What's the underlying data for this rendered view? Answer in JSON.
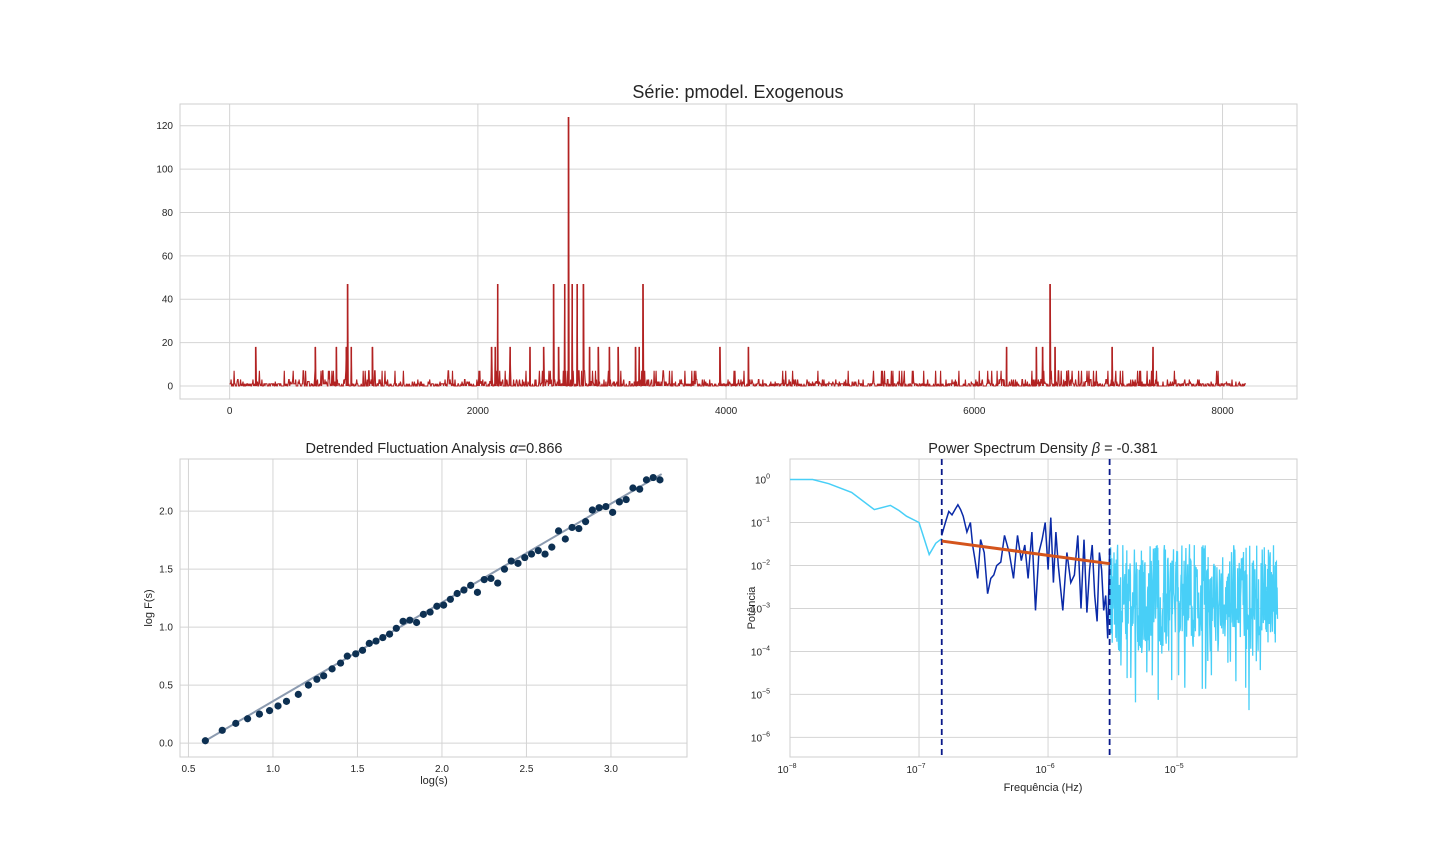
{
  "chart_data": [
    {
      "type": "line",
      "title": "Série: pmodel. Exogenous",
      "xlabel": "",
      "ylabel": "",
      "xlim": [
        -400,
        8600
      ],
      "ylim": [
        -6,
        130
      ],
      "xticks": [
        0,
        2000,
        4000,
        6000,
        8000
      ],
      "yticks": [
        0,
        20,
        40,
        60,
        80,
        100,
        120
      ],
      "grid": true,
      "series": [
        {
          "color": "#b22222",
          "n_points": 8192,
          "spikes": [
            {
              "x": 2730,
              "y": 124
            },
            {
              "x": 950,
              "y": 47
            },
            {
              "x": 2160,
              "y": 47
            },
            {
              "x": 2610,
              "y": 47
            },
            {
              "x": 2700,
              "y": 47
            },
            {
              "x": 2760,
              "y": 47
            },
            {
              "x": 2800,
              "y": 47
            },
            {
              "x": 2850,
              "y": 47
            },
            {
              "x": 3330,
              "y": 47
            },
            {
              "x": 6610,
              "y": 47
            },
            {
              "x": 210,
              "y": 18
            },
            {
              "x": 690,
              "y": 18
            },
            {
              "x": 860,
              "y": 18
            },
            {
              "x": 940,
              "y": 18
            },
            {
              "x": 980,
              "y": 18
            },
            {
              "x": 1150,
              "y": 18
            },
            {
              "x": 2110,
              "y": 18
            },
            {
              "x": 2140,
              "y": 18
            },
            {
              "x": 2260,
              "y": 18
            },
            {
              "x": 2420,
              "y": 18
            },
            {
              "x": 2530,
              "y": 18
            },
            {
              "x": 2650,
              "y": 18
            },
            {
              "x": 2900,
              "y": 18
            },
            {
              "x": 2970,
              "y": 18
            },
            {
              "x": 3060,
              "y": 18
            },
            {
              "x": 3130,
              "y": 18
            },
            {
              "x": 3270,
              "y": 18
            },
            {
              "x": 3300,
              "y": 18
            },
            {
              "x": 3950,
              "y": 18
            },
            {
              "x": 4180,
              "y": 18
            },
            {
              "x": 6260,
              "y": 18
            },
            {
              "x": 6500,
              "y": 18
            },
            {
              "x": 6550,
              "y": 18
            },
            {
              "x": 6650,
              "y": 18
            },
            {
              "x": 7110,
              "y": 18
            },
            {
              "x": 7440,
              "y": 18
            }
          ]
        }
      ]
    },
    {
      "type": "scatter",
      "title": "Detrended Fluctuation Analysis α=0.866",
      "title_prefix": "Detrended Fluctuation Analysis ",
      "title_symbol": "α",
      "title_suffix": "=0.866",
      "xlabel": "log(s)",
      "ylabel": "log F(s)",
      "xlim": [
        0.45,
        3.45
      ],
      "ylim": [
        -0.12,
        2.45
      ],
      "xticks": [
        "0.5",
        "1.0",
        "1.5",
        "2.0",
        "2.5",
        "3.0"
      ],
      "yticks": [
        "0.0",
        "0.5",
        "1.0",
        "1.5",
        "2.0"
      ],
      "grid": true,
      "fit": {
        "x": [
          0.6,
          3.3
        ],
        "y": [
          0.02,
          2.32
        ],
        "color": "#8c9bb0"
      },
      "point_color": "#0d3052",
      "x": [
        0.6,
        0.7,
        0.78,
        0.85,
        0.92,
        0.98,
        1.03,
        1.08,
        1.15,
        1.21,
        1.26,
        1.3,
        1.35,
        1.4,
        1.44,
        1.49,
        1.53,
        1.57,
        1.61,
        1.65,
        1.69,
        1.73,
        1.77,
        1.81,
        1.85,
        1.89,
        1.93,
        1.97,
        2.01,
        2.05,
        2.09,
        2.13,
        2.17,
        2.21,
        2.25,
        2.29,
        2.33,
        2.37,
        2.41,
        2.45,
        2.49,
        2.53,
        2.57,
        2.61,
        2.65,
        2.69,
        2.73,
        2.77,
        2.81,
        2.85,
        2.89,
        2.93,
        2.97,
        3.01,
        3.05,
        3.09,
        3.13,
        3.17,
        3.21,
        3.25,
        3.29
      ],
      "y": [
        0.02,
        0.11,
        0.17,
        0.21,
        0.25,
        0.28,
        0.32,
        0.36,
        0.42,
        0.5,
        0.55,
        0.58,
        0.64,
        0.69,
        0.75,
        0.77,
        0.8,
        0.86,
        0.88,
        0.91,
        0.94,
        0.99,
        1.05,
        1.06,
        1.04,
        1.11,
        1.13,
        1.18,
        1.19,
        1.24,
        1.29,
        1.32,
        1.36,
        1.3,
        1.41,
        1.42,
        1.38,
        1.5,
        1.57,
        1.55,
        1.6,
        1.63,
        1.66,
        1.63,
        1.69,
        1.83,
        1.76,
        1.86,
        1.85,
        1.91,
        2.01,
        2.03,
        2.04,
        1.99,
        2.08,
        2.1,
        2.2,
        2.19,
        2.27,
        2.29,
        2.27
      ]
    },
    {
      "type": "line",
      "title": "Power Spectrum Density β = -0.381",
      "title_prefix": "Power Spectrum Density ",
      "title_symbol": "β",
      "title_suffix": " = -0.381",
      "xlabel": "Frequência (Hz)",
      "ylabel": "Potência",
      "xscale": "log",
      "yscale": "log",
      "xlim": [
        1e-08,
        8.5e-05
      ],
      "ylim": [
        3.5e-07,
        3.0
      ],
      "xticks": [
        {
          "base": "10",
          "exp": "−8"
        },
        {
          "base": "10",
          "exp": "−7"
        },
        {
          "base": "10",
          "exp": "−6"
        },
        {
          "base": "10",
          "exp": "−5"
        }
      ],
      "yticks": [
        {
          "base": "10",
          "exp": "0"
        },
        {
          "base": "10",
          "exp": "−1"
        },
        {
          "base": "10",
          "exp": "−2"
        },
        {
          "base": "10",
          "exp": "−3"
        },
        {
          "base": "10",
          "exp": "−4"
        },
        {
          "base": "10",
          "exp": "−5"
        },
        {
          "base": "10",
          "exp": "−6"
        }
      ],
      "grid": true,
      "vlines": [
        {
          "x": 1.5e-07,
          "color": "#0a1a8a"
        },
        {
          "x": 3e-06,
          "color": "#0a1a8a"
        }
      ],
      "fit": {
        "x": [
          1.5e-07,
          3e-06
        ],
        "y": [
          0.037,
          0.011
        ],
        "color": "#d4541c"
      },
      "series": [
        {
          "color": "#48cff7",
          "x": [
            1e-08,
            1.5e-08,
            2e-08,
            3e-08,
            4.5e-08,
            6e-08,
            7e-08,
            8e-08,
            1e-07,
            1.2e-07,
            1.35e-07,
            1.5e-07
          ],
          "y": [
            1.0,
            1.0,
            0.8,
            0.5,
            0.2,
            0.25,
            0.19,
            0.14,
            0.1,
            0.018,
            0.033,
            0.042
          ]
        },
        {
          "color": "#0a2aa8",
          "x": [
            1.5e-07,
            1.6e-07,
            1.7e-07,
            1.8e-07,
            1.9e-07,
            2e-07,
            2.1e-07,
            2.2e-07,
            2.35e-07,
            2.5e-07,
            2.6e-07,
            2.7e-07,
            2.85e-07,
            3e-07,
            3.2e-07,
            3.4e-07,
            3.6e-07,
            3.8e-07,
            4e-07,
            4.3e-07,
            4.6e-07,
            5e-07,
            5.4e-07,
            5.8e-07,
            6.2e-07,
            6.6e-07,
            7e-07,
            7.5e-07,
            8e-07,
            8.5e-07,
            9e-07,
            9.5e-07,
            1e-06,
            1.05e-06,
            1.1e-06,
            1.15e-06,
            1.2e-06,
            1.3e-06,
            1.4e-06,
            1.5e-06,
            1.6e-06,
            1.7e-06,
            1.8e-06,
            1.9e-06,
            2e-06,
            2.1e-06,
            2.2e-06,
            2.3e-06,
            2.4e-06,
            2.5e-06,
            2.6e-06,
            2.7e-06,
            2.8e-06,
            2.9e-06,
            3e-06
          ],
          "y": [
            0.05,
            0.1,
            0.18,
            0.15,
            0.2,
            0.26,
            0.2,
            0.14,
            0.06,
            0.1,
            0.03,
            0.015,
            0.005,
            0.04,
            0.02,
            0.0022,
            0.005,
            0.006,
            0.01,
            0.012,
            0.05,
            0.02,
            0.005,
            0.05,
            0.013,
            0.03,
            0.005,
            0.06,
            0.0009,
            0.02,
            0.04,
            0.1,
            0.008,
            0.13,
            0.004,
            0.06,
            0.01,
            0.0009,
            0.02,
            0.004,
            0.006,
            0.05,
            0.001,
            0.04,
            0.0008,
            0.008,
            0.03,
            0.002,
            0.0005,
            0.02,
            0.008,
            0.0009,
            0.002,
            0.0002,
            0.025
          ]
        },
        {
          "color": "#48cff7",
          "x": [
            3e-06,
            8.5e-05
          ],
          "y_median": 0.002,
          "note_label": ""
        }
      ]
    }
  ]
}
